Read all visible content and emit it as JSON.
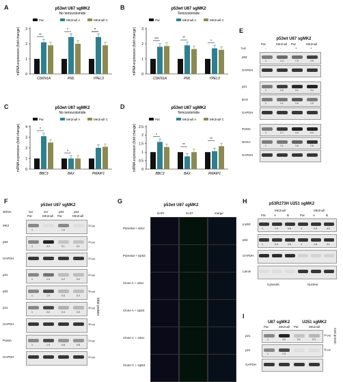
{
  "colors": {
    "par": "#111111",
    "mkA": "#2e7f8f",
    "mkC": "#8c8a52"
  },
  "panels": {
    "A": {
      "letter": "A"
    },
    "B": {
      "letter": "B"
    },
    "C": {
      "letter": "C"
    },
    "D": {
      "letter": "D"
    },
    "E": {
      "letter": "E",
      "title": "p53wt U87 sgMK2",
      "tmz": "TMZ",
      "lanes": [
        "Par",
        "MK2null",
        "Par",
        "MK2null"
      ],
      "tmz_signs": [
        "-",
        "-",
        "+",
        "+"
      ],
      "rows": [
        {
          "label": "p53",
          "vals": [
            "1",
            "1.4",
            "1.3",
            "2.5"
          ]
        },
        {
          "label": "GAPDH",
          "vals": []
        },
        {
          "label": "p21",
          "vals": [
            "1",
            "2.6",
            "3.1",
            "3.4"
          ]
        },
        {
          "label": "BAX",
          "vals": [
            "1",
            "1.1",
            "1.9",
            "1.0"
          ]
        },
        {
          "label": "GAPDH",
          "vals": []
        },
        {
          "label": "PUMA",
          "vals": [
            "1",
            "2.7",
            "3.4",
            "6.0"
          ]
        },
        {
          "label": "NOXA",
          "vals": [
            "1",
            "1.1",
            "1.6",
            "2.8"
          ]
        },
        {
          "label": "GAPDH",
          "vals": []
        }
      ]
    },
    "F": {
      "letter": "F",
      "title": "p53wt U87 sgMK2",
      "sirna": "siRNA",
      "lanes": [
        "Scr",
        "Scr",
        "p53",
        "p53"
      ],
      "lanes2": [
        "Par",
        "MK2null",
        "Par",
        "MK2null"
      ],
      "side": "total protein",
      "rows": [
        {
          "label": "MK2",
          "vals": [
            "1",
            "",
            "1.0",
            ""
          ],
          "ug": "20 μg"
        },
        {
          "label": "p53",
          "vals": [
            "1",
            "3.3",
            "0.1",
            "0.1"
          ],
          "ug": "20 μg"
        },
        {
          "label": "GAPDH",
          "vals": [],
          "ug": "20 μg"
        },
        {
          "label": "p21",
          "vals": [
            "1",
            "1.3",
            "0.2",
            "0.2"
          ],
          "ug": "20 μg"
        },
        {
          "label": "p53",
          "vals": [
            "1",
            "1.9",
            "0.3",
            "0.2"
          ],
          "ug": "30 μg"
        },
        {
          "label": "p21",
          "vals": [
            "1",
            "2.0",
            "0.4",
            "0.3"
          ],
          "ug": "30 μg"
        },
        {
          "label": "GAPDH",
          "vals": [],
          "ug": "30 μg"
        },
        {
          "label": "PUMA",
          "vals": [
            "1",
            "1.9",
            "0.8",
            "0.8"
          ],
          "ug": "20 μg"
        },
        {
          "label": "GAPDH",
          "vals": [],
          "ug": "20 μg"
        }
      ]
    },
    "G": {
      "letter": "G",
      "title": "p53wt U87 sgMK2",
      "cols": [
        "DAPI",
        "Ki-67",
        "merge"
      ],
      "rows": [
        "Parental + siScr",
        "Parental + sip53",
        "Clone A + siScr",
        "Clone A + sip53",
        "Clone C + siScr",
        "Clone C + sip53"
      ]
    },
    "H": {
      "letter": "H",
      "title": "p53R273H U251 sgMK2",
      "head": [
        "MK2null",
        "MK2null"
      ],
      "lanes": [
        "Par",
        "A",
        "B",
        "Par",
        "A",
        "B"
      ],
      "rows": [
        {
          "label": "p-p53",
          "vals": [
            "1",
            "1.0",
            "0.8",
            "1",
            "2.5",
            "4.0"
          ]
        },
        {
          "label": "p53",
          "vals": [
            "1",
            "0.9",
            "0.8",
            "1",
            "1.8",
            "3.1"
          ]
        },
        {
          "label": "GAPDH",
          "vals": []
        },
        {
          "label": "Lamin",
          "vals": []
        }
      ],
      "fractions": [
        "Cytosolic",
        "Nuclear"
      ]
    },
    "I": {
      "letter": "I",
      "title1": "U87 sgMK2",
      "title2": "U251 sgMK2",
      "lanes": [
        "Par",
        "MK2null",
        "Par",
        "MK2null"
      ],
      "side": "total protein",
      "rows": [
        {
          "label": "p21",
          "vals": [
            "1",
            "3.8",
            "0.1",
            "0.3"
          ],
          "ug": "20 μg"
        },
        {
          "label": "p21",
          "vals": [
            "1",
            "1.9",
            "",
            ""
          ],
          "ug": "30 μg"
        },
        {
          "label": "GAPDH",
          "vals": [],
          "ug": ""
        }
      ]
    }
  },
  "chart_data": [
    {
      "type": "bar",
      "title": "p53wt U87 sgMK2",
      "subtitle": "No temozolomide",
      "ylabel": "mRNA expression (fold change)",
      "ylim": [
        0,
        3
      ],
      "legend": [
        "Par",
        "MK2null A",
        "MK2null C"
      ],
      "categories": [
        "CDKN1A",
        "PML",
        "YPEL3"
      ],
      "series": [
        {
          "name": "Par",
          "values": [
            1,
            1,
            1
          ]
        },
        {
          "name": "MK2null A",
          "values": [
            2.1,
            2.45,
            2.45
          ]
        },
        {
          "name": "MK2null C",
          "values": [
            1.9,
            2.0,
            1.9
          ]
        }
      ],
      "significance": [
        "**",
        "*",
        "*",
        "*"
      ]
    },
    {
      "type": "bar",
      "title": "p53wt U87 sgMK2",
      "subtitle": "Temozolomide",
      "ylabel": "mRNA expression (fold change)",
      "ylim": [
        0,
        3
      ],
      "legend": [
        "Par",
        "MK2null A",
        "MK2null C"
      ],
      "categories": [
        "CDKN1A",
        "PML",
        "YPEL3"
      ],
      "series": [
        {
          "name": "Par",
          "values": [
            1,
            1,
            1
          ]
        },
        {
          "name": "MK2null A",
          "values": [
            1.8,
            1.9,
            1.7
          ]
        },
        {
          "name": "MK2null C",
          "values": [
            1.85,
            1.65,
            1.6
          ]
        }
      ],
      "significance": [
        "***",
        "**",
        "*"
      ]
    },
    {
      "type": "bar",
      "title": "p53wt U87 sgMK2",
      "subtitle": "No temozolomide",
      "ylabel": "mRNA expression (fold change)",
      "ylim": [
        0,
        4
      ],
      "legend": [
        "Par",
        "MK2null A",
        "MK2null C"
      ],
      "categories": [
        "BBC3",
        "BAX",
        "PMAIP1"
      ],
      "series": [
        {
          "name": "Par",
          "values": [
            1,
            1,
            1
          ]
        },
        {
          "name": "MK2null A",
          "values": [
            3.1,
            1.0,
            2.0
          ]
        },
        {
          "name": "MK2null C",
          "values": [
            2.5,
            1.0,
            2.1
          ]
        }
      ],
      "significance": [
        "*",
        "*"
      ]
    },
    {
      "type": "bar",
      "title": "p53wt U87 sgMK2",
      "subtitle": "Temozolomide",
      "ylabel": "mRNA expression (fold change)",
      "ylim": [
        0,
        2.5
      ],
      "legend": [
        "Par",
        "MK2null A",
        "MK2null C"
      ],
      "categories": [
        "BBC3",
        "BAX",
        "PMAIP1"
      ],
      "series": [
        {
          "name": "Par",
          "values": [
            1,
            1,
            1
          ]
        },
        {
          "name": "MK2null A",
          "values": [
            1.6,
            0.75,
            1.05
          ]
        },
        {
          "name": "MK2null C",
          "values": [
            1.3,
            1.0,
            1.35
          ]
        }
      ],
      "significance": [
        "*",
        "**",
        "**"
      ]
    }
  ]
}
